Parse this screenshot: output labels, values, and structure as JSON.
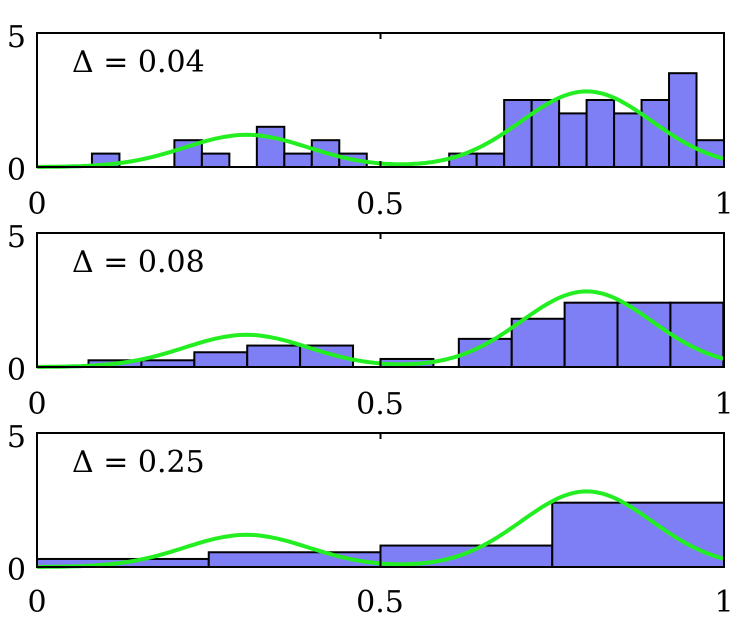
{
  "chart_data": [
    {
      "type": "bar",
      "label": "Δ = 0.04",
      "xlim": [
        0,
        1
      ],
      "ylim": [
        0,
        5
      ],
      "xticks": [
        "0",
        "0.5",
        "1"
      ],
      "yticks": [
        "0",
        "5"
      ],
      "bin_width": 0.04,
      "bins": [
        {
          "x": 0.08,
          "y": 0.5
        },
        {
          "x": 0.2,
          "y": 1.0
        },
        {
          "x": 0.24,
          "y": 0.5
        },
        {
          "x": 0.32,
          "y": 1.5
        },
        {
          "x": 0.36,
          "y": 0.5
        },
        {
          "x": 0.4,
          "y": 1.0
        },
        {
          "x": 0.44,
          "y": 0.5
        },
        {
          "x": 0.6,
          "y": 0.5
        },
        {
          "x": 0.64,
          "y": 0.5
        },
        {
          "x": 0.68,
          "y": 2.5
        },
        {
          "x": 0.72,
          "y": 2.5
        },
        {
          "x": 0.76,
          "y": 2.0
        },
        {
          "x": 0.8,
          "y": 2.5
        },
        {
          "x": 0.84,
          "y": 2.0
        },
        {
          "x": 0.88,
          "y": 2.5
        },
        {
          "x": 0.92,
          "y": 3.5
        },
        {
          "x": 0.96,
          "y": 1.0
        }
      ],
      "curve": {
        "color": "#22ee22"
      }
    },
    {
      "type": "bar",
      "label": "Δ = 0.08",
      "xlim": [
        0,
        1
      ],
      "ylim": [
        0,
        5
      ],
      "xticks": [
        "0",
        "0.5",
        "1"
      ],
      "yticks": [
        "0",
        "5"
      ],
      "bin_width": 0.077,
      "bins": [
        {
          "x": 0.075,
          "y": 0.25
        },
        {
          "x": 0.152,
          "y": 0.25
        },
        {
          "x": 0.229,
          "y": 0.55
        },
        {
          "x": 0.306,
          "y": 0.8
        },
        {
          "x": 0.383,
          "y": 0.8
        },
        {
          "x": 0.46,
          "y": 0.0
        },
        {
          "x": 0.5,
          "y": 0.3
        },
        {
          "x": 0.614,
          "y": 1.05
        },
        {
          "x": 0.691,
          "y": 1.8
        },
        {
          "x": 0.768,
          "y": 2.4
        },
        {
          "x": 0.845,
          "y": 2.4
        },
        {
          "x": 0.922,
          "y": 2.4
        }
      ],
      "curve": {
        "color": "#22ee22"
      }
    },
    {
      "type": "bar",
      "label": "Δ = 0.25",
      "xlim": [
        0,
        1
      ],
      "ylim": [
        0,
        5
      ],
      "xticks": [
        "0",
        "0.5",
        "1"
      ],
      "yticks": [
        "0",
        "5"
      ],
      "bin_width": 0.25,
      "bins": [
        {
          "x": 0.0,
          "y": 0.3
        },
        {
          "x": 0.25,
          "y": 0.55
        },
        {
          "x": 0.5,
          "y": 0.8
        },
        {
          "x": 0.75,
          "y": 2.4
        }
      ],
      "curve": {
        "color": "#22ee22"
      }
    }
  ],
  "style": {
    "bar_fill": "#7f7ff5",
    "bar_stroke": "#000000",
    "curve_color": "#22ee22"
  }
}
